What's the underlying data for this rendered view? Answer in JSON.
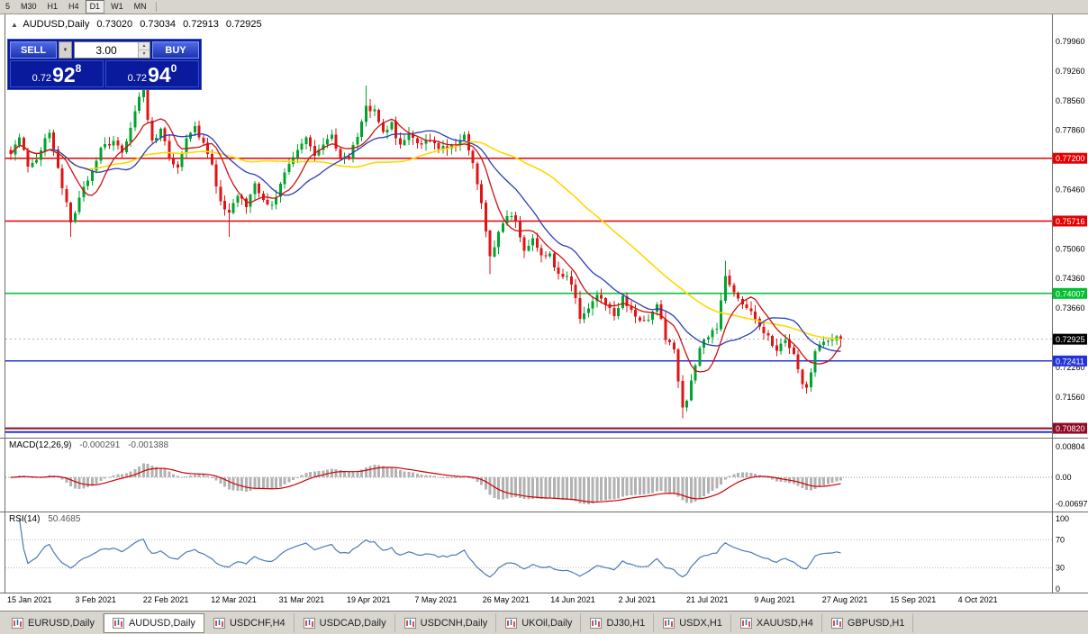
{
  "toolbar": {
    "items": [
      {
        "label": "5",
        "active": false
      },
      {
        "label": "M30",
        "active": false
      },
      {
        "label": "H1",
        "active": false
      },
      {
        "label": "H4",
        "active": false
      },
      {
        "label": "D1",
        "active": true
      },
      {
        "label": "W1",
        "active": false
      },
      {
        "label": "MN",
        "active": false
      }
    ]
  },
  "chart_header": {
    "marker": "▲",
    "symbol": "AUDUSD,Daily",
    "open": "0.73020",
    "high": "0.73034",
    "low": "0.72913",
    "close": "0.72925"
  },
  "trade_panel": {
    "sell_label": "SELL",
    "buy_label": "BUY",
    "volume": "3.00",
    "dropdown_icon": "▼",
    "spinner_up": "▲",
    "spinner_down": "▼",
    "sell_price": {
      "prefix": "0.72",
      "big": "92",
      "sup": "8"
    },
    "buy_price": {
      "prefix": "0.72",
      "big": "94",
      "sup": "0"
    }
  },
  "indicators": {
    "macd": {
      "name": "MACD(12,26,9)",
      "value": "-0.000291",
      "signal": "-0.001388"
    },
    "rsi": {
      "name": "RSI(14)",
      "value": "50.4685"
    }
  },
  "tabs": [
    {
      "label": "EURUSD,Daily",
      "active": false
    },
    {
      "label": "AUDUSD,Daily",
      "active": true
    },
    {
      "label": "USDCHF,H4",
      "active": false
    },
    {
      "label": "USDCAD,Daily",
      "active": false
    },
    {
      "label": "USDCNH,Daily",
      "active": false
    },
    {
      "label": "UKOil,Daily",
      "active": false
    },
    {
      "label": "DJ30,H1",
      "active": false
    },
    {
      "label": "USDX,H1",
      "active": false
    },
    {
      "label": "XAUUSD,H4",
      "active": false
    },
    {
      "label": "GBPUSD,H1",
      "active": false
    }
  ],
  "chart_data": {
    "type": "candlestick",
    "symbol": "AUDUSD",
    "timeframe": "Daily",
    "current_ohlc": [
      0.7302,
      0.73034,
      0.72913,
      0.72925
    ],
    "bars": 195,
    "price_axis_ticks": [
      "0.79960",
      "0.79260",
      "0.78560",
      "0.77860",
      "0.76460",
      "0.75060",
      "0.74360",
      "0.73660",
      "0.72260",
      "0.71560"
    ],
    "date_labels": [
      "15 Jan 2021",
      "3 Feb 2021",
      "22 Feb 2021",
      "12 Mar 2021",
      "31 Mar 2021",
      "19 Apr 2021",
      "7 May 2021",
      "26 May 2021",
      "14 Jun 2021",
      "2 Jul 2021",
      "21 Jul 2021",
      "9 Aug 2021",
      "27 Aug 2021",
      "15 Sep 2021",
      "4 Oct 2021"
    ],
    "levels": [
      {
        "value": 0.772,
        "label": "0.77200",
        "color": "#e60000",
        "width": 1.5
      },
      {
        "value": 0.75716,
        "label": "0.75716",
        "color": "#e60000",
        "width": 1.5
      },
      {
        "value": 0.74007,
        "label": "0.74007",
        "color": "#00c030",
        "width": 1.5
      },
      {
        "value": 0.72411,
        "label": "0.72411",
        "color": "#2233dd",
        "width": 1.5
      },
      {
        "value": 0.7082,
        "label": "0.70820",
        "color": "#8e0b25",
        "width": 2
      },
      {
        "value": 0.7073,
        "label": "",
        "color": "#2233dd",
        "width": 2
      }
    ],
    "current_price": {
      "value": 0.72925,
      "label": "0.72925",
      "bg": "#000000"
    },
    "candle_colors": {
      "bull": "#00a32e",
      "bear": "#e01414"
    },
    "close_waypoints": [
      [
        0,
        0.773
      ],
      [
        2,
        0.7768
      ],
      [
        4,
        0.77
      ],
      [
        6,
        0.7722
      ],
      [
        9,
        0.7786
      ],
      [
        12,
        0.7648
      ],
      [
        14,
        0.7572
      ],
      [
        16,
        0.7622
      ],
      [
        18,
        0.7672
      ],
      [
        21,
        0.7742
      ],
      [
        24,
        0.7762
      ],
      [
        26,
        0.7736
      ],
      [
        28,
        0.7792
      ],
      [
        30,
        0.7862
      ],
      [
        31,
        0.7886
      ],
      [
        32,
        0.7812
      ],
      [
        33,
        0.7756
      ],
      [
        35,
        0.7786
      ],
      [
        37,
        0.7726
      ],
      [
        39,
        0.7692
      ],
      [
        41,
        0.7766
      ],
      [
        43,
        0.7792
      ],
      [
        45,
        0.7756
      ],
      [
        47,
        0.7702
      ],
      [
        49,
        0.7616
      ],
      [
        51,
        0.759
      ],
      [
        53,
        0.7636
      ],
      [
        55,
        0.7602
      ],
      [
        57,
        0.7656
      ],
      [
        59,
        0.7616
      ],
      [
        61,
        0.7606
      ],
      [
        63,
        0.7662
      ],
      [
        65,
        0.7702
      ],
      [
        67,
        0.7736
      ],
      [
        69,
        0.7766
      ],
      [
        71,
        0.7722
      ],
      [
        73,
        0.7756
      ],
      [
        75,
        0.7776
      ],
      [
        77,
        0.7716
      ],
      [
        79,
        0.7726
      ],
      [
        81,
        0.7772
      ],
      [
        83,
        0.7846
      ],
      [
        85,
        0.783
      ],
      [
        87,
        0.7776
      ],
      [
        89,
        0.78
      ],
      [
        91,
        0.7746
      ],
      [
        93,
        0.7776
      ],
      [
        95,
        0.7752
      ],
      [
        98,
        0.7766
      ],
      [
        100,
        0.7746
      ],
      [
        102,
        0.7742
      ],
      [
        104,
        0.7752
      ],
      [
        106,
        0.7772
      ],
      [
        108,
        0.7712
      ],
      [
        110,
        0.7616
      ],
      [
        112,
        0.7486
      ],
      [
        114,
        0.7542
      ],
      [
        116,
        0.7586
      ],
      [
        118,
        0.7572
      ],
      [
        120,
        0.7506
      ],
      [
        122,
        0.7532
      ],
      [
        124,
        0.7496
      ],
      [
        126,
        0.749
      ],
      [
        128,
        0.7446
      ],
      [
        130,
        0.7442
      ],
      [
        132,
        0.7392
      ],
      [
        133,
        0.7336
      ],
      [
        135,
        0.7362
      ],
      [
        137,
        0.7398
      ],
      [
        139,
        0.7372
      ],
      [
        141,
        0.7348
      ],
      [
        143,
        0.7392
      ],
      [
        145,
        0.7358
      ],
      [
        147,
        0.7332
      ],
      [
        149,
        0.7342
      ],
      [
        151,
        0.7372
      ],
      [
        153,
        0.7296
      ],
      [
        155,
        0.7262
      ],
      [
        157,
        0.7136
      ],
      [
        158,
        0.7152
      ],
      [
        160,
        0.7226
      ],
      [
        161,
        0.7272
      ],
      [
        163,
        0.7302
      ],
      [
        165,
        0.7318
      ],
      [
        167,
        0.7442
      ],
      [
        169,
        0.7402
      ],
      [
        171,
        0.7372
      ],
      [
        173,
        0.7356
      ],
      [
        175,
        0.7328
      ],
      [
        177,
        0.7296
      ],
      [
        179,
        0.7266
      ],
      [
        181,
        0.7292
      ],
      [
        183,
        0.7262
      ],
      [
        185,
        0.7192
      ],
      [
        186,
        0.7172
      ],
      [
        188,
        0.7268
      ],
      [
        190,
        0.7288
      ],
      [
        192,
        0.7294
      ],
      [
        194,
        0.72925
      ]
    ],
    "high_overrides": {
      "31": 0.7906,
      "83": 0.7892,
      "167": 0.7478
    },
    "low_overrides": {
      "14": 0.7534,
      "51": 0.7534,
      "112": 0.7446,
      "157": 0.7106,
      "186": 0.7168
    },
    "moving_averages": [
      {
        "period": 45,
        "color": "#ffd700",
        "width": 1.6
      },
      {
        "period": 18,
        "color": "#2b3cb8",
        "width": 1.3
      },
      {
        "period": 8,
        "color": "#cc1111",
        "width": 1.3
      }
    ],
    "macd_panel": {
      "params": "12,26,9",
      "value": -0.000291,
      "signal": -0.001388,
      "axis_labels": [
        "0.00804",
        "0.00",
        "-0.00697"
      ],
      "axis_values": [
        0.00804,
        0,
        -0.00697
      ],
      "histogram_color": "#b2b2b2",
      "signal_color": "#d00000"
    },
    "rsi_panel": {
      "period": 14,
      "value": 50.4685,
      "axis_labels": [
        "100",
        "70",
        "30",
        "0"
      ],
      "axis_values": [
        100,
        70,
        30,
        0
      ],
      "levels": [
        70,
        30
      ],
      "color": "#4a7ab5"
    }
  }
}
